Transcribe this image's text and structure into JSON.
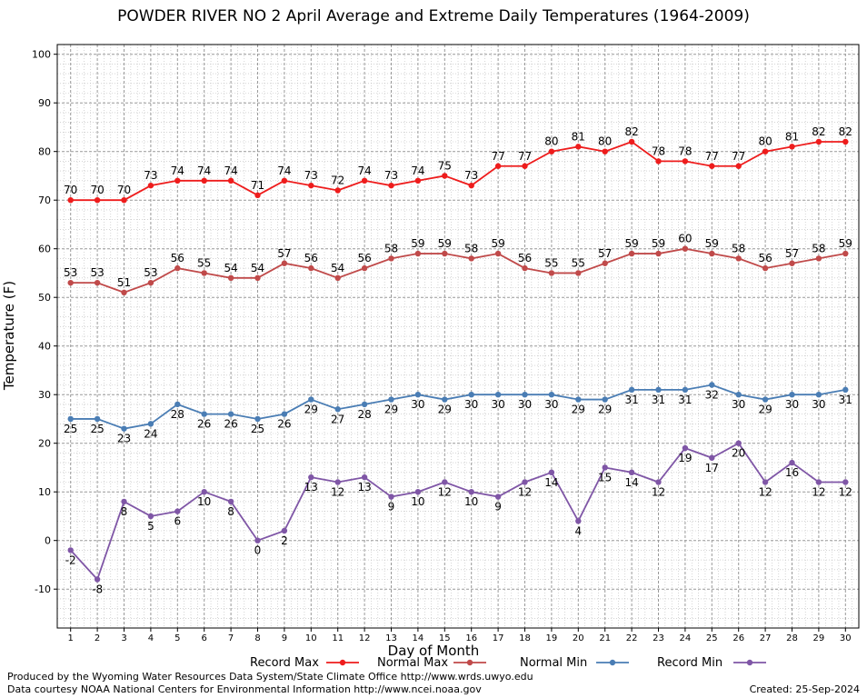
{
  "chart_data": {
    "type": "line",
    "title": "POWDER RIVER NO 2 April Average and Extreme Daily Temperatures (1964-2009)",
    "xlabel": "Day of Month",
    "ylabel": "Temperature (F)",
    "x": [
      1,
      2,
      3,
      4,
      5,
      6,
      7,
      8,
      9,
      10,
      11,
      12,
      13,
      14,
      15,
      16,
      17,
      18,
      19,
      20,
      21,
      22,
      23,
      24,
      25,
      26,
      27,
      28,
      29,
      30
    ],
    "xlim": [
      0.5,
      30.5
    ],
    "ylim": [
      -18,
      102
    ],
    "yticks": [
      -10,
      0,
      10,
      20,
      30,
      40,
      50,
      60,
      70,
      80,
      90,
      100
    ],
    "grid": true,
    "legend_position": "bottom",
    "series": [
      {
        "name": "Record Max",
        "color": "#ee1c1c",
        "label_pos": "above",
        "values": [
          70,
          70,
          70,
          73,
          74,
          74,
          74,
          71,
          74,
          73,
          72,
          74,
          73,
          74,
          75,
          73,
          77,
          77,
          80,
          81,
          80,
          82,
          78,
          78,
          77,
          77,
          80,
          81,
          82,
          82
        ]
      },
      {
        "name": "Normal Max",
        "color": "#c04a4a",
        "label_pos": "above",
        "values": [
          53,
          53,
          51,
          53,
          56,
          55,
          54,
          54,
          57,
          56,
          54,
          56,
          58,
          59,
          59,
          58,
          59,
          56,
          55,
          55,
          57,
          59,
          59,
          60,
          59,
          58,
          56,
          57,
          58,
          59
        ]
      },
      {
        "name": "Normal Min",
        "color": "#4a7db4",
        "label_pos": "below",
        "values": [
          25,
          25,
          23,
          24,
          28,
          26,
          26,
          25,
          26,
          29,
          27,
          28,
          29,
          30,
          29,
          30,
          30,
          30,
          30,
          29,
          29,
          31,
          31,
          31,
          32,
          30,
          29,
          30,
          30,
          31
        ]
      },
      {
        "name": "Record Min",
        "color": "#7f56a6",
        "label_pos": "below",
        "values": [
          -2,
          -8,
          8,
          5,
          6,
          10,
          8,
          0,
          2,
          13,
          12,
          13,
          9,
          10,
          12,
          10,
          9,
          12,
          14,
          4,
          15,
          14,
          12,
          19,
          17,
          20,
          12,
          16,
          12,
          12
        ]
      }
    ]
  },
  "footer": {
    "produced_by": "Produced by the Wyoming Water Resources Data System/State Climate Office http://www.wrds.uwyo.edu",
    "courtesy": "Data courtesy NOAA National Centers for Environmental Information http://www.ncei.noaa.gov",
    "created": "Created:  25-Sep-2024"
  }
}
